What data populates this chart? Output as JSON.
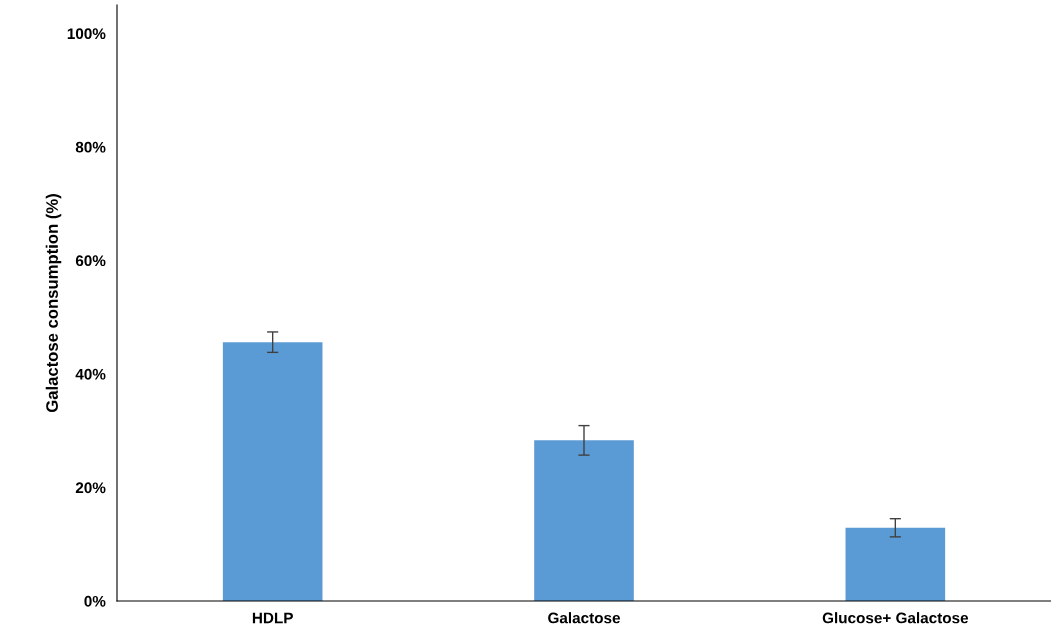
{
  "chart_data": {
    "type": "bar",
    "ylabel": "Galactose consumption (%)",
    "categories": [
      "HDLP",
      "Galactose",
      "Glucose+ Galactose"
    ],
    "values": [
      45.6,
      28.3,
      12.9
    ],
    "errors": [
      1.8,
      2.6,
      1.6
    ],
    "color": "#5b9bd5",
    "ylim": [
      0,
      105
    ],
    "yticks": [
      {
        "value": 0,
        "label": "0%"
      },
      {
        "value": 20,
        "label": "20%"
      },
      {
        "value": 40,
        "label": "40%"
      },
      {
        "value": 60,
        "label": "60%"
      },
      {
        "value": 80,
        "label": "80%"
      },
      {
        "value": 100,
        "label": "100%"
      }
    ],
    "grid": false,
    "legend": false
  }
}
